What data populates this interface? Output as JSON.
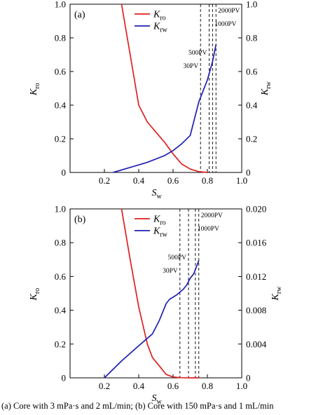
{
  "caption": "(a)  Core  with  3  mPa·s  and 2 mL/min; (b) Core with 150 mPa·s and 1 mL/min",
  "colors": {
    "kro": "#e0201f",
    "krw": "#1f1fb4",
    "axis": "#000000",
    "marker": "#000000"
  },
  "chart_data": [
    {
      "type": "line",
      "panel_label": "(a)",
      "xlabel": "S",
      "xlabel_sub": "w",
      "ylabel_left": "K",
      "ylabel_left_sub": "ro",
      "ylabel_right": "K",
      "ylabel_right_sub": "rw",
      "xlim": [
        0,
        1.0
      ],
      "ylim_left": [
        0,
        1.0
      ],
      "ylim_right": [
        0,
        1.0
      ],
      "x_ticks": [
        "0.2",
        "0.4",
        "0.6",
        "0.8",
        "1.0"
      ],
      "x_tick_values": [
        0.2,
        0.4,
        0.6,
        0.8,
        1.0
      ],
      "y_left_ticks": [
        "0",
        "0.2",
        "0.4",
        "0.6",
        "0.8",
        "1.0"
      ],
      "y_left_tick_values": [
        0,
        0.2,
        0.4,
        0.6,
        0.8,
        1.0
      ],
      "y_right_ticks": [
        "0",
        "0.2",
        "0.4",
        "0.6",
        "0.8",
        "1.0"
      ],
      "y_right_tick_values": [
        0,
        0.2,
        0.4,
        0.6,
        0.8,
        1.0
      ],
      "legend": {
        "position": "top-center",
        "items": [
          {
            "label": "K",
            "sub": "ro",
            "series": "Kro"
          },
          {
            "label": "K",
            "sub": "rw",
            "series": "Krw"
          }
        ]
      },
      "series": [
        {
          "name": "Kro",
          "axis": "left",
          "color": "#e0201f",
          "x": [
            0.3,
            0.35,
            0.4,
            0.45,
            0.5,
            0.55,
            0.6,
            0.65,
            0.7,
            0.75,
            0.8
          ],
          "y": [
            1.0,
            0.7,
            0.4,
            0.3,
            0.24,
            0.18,
            0.11,
            0.05,
            0.02,
            0.005,
            0.0
          ]
        },
        {
          "name": "Krw",
          "axis": "right",
          "color": "#1f1fb4",
          "x": [
            0.25,
            0.35,
            0.45,
            0.55,
            0.6,
            0.65,
            0.7,
            0.72,
            0.75,
            0.8,
            0.83,
            0.85
          ],
          "y": [
            0.0,
            0.03,
            0.06,
            0.1,
            0.13,
            0.17,
            0.22,
            0.3,
            0.42,
            0.55,
            0.66,
            0.76
          ]
        }
      ],
      "injection_markers": [
        {
          "label": "30PV",
          "x": 0.76
        },
        {
          "label": "500PV",
          "x": 0.81
        },
        {
          "label": "1000PV",
          "x": 0.83
        },
        {
          "label": "2000PV",
          "x": 0.85
        }
      ]
    },
    {
      "type": "line",
      "panel_label": "(b)",
      "xlabel": "S",
      "xlabel_sub": "w",
      "ylabel_left": "K",
      "ylabel_left_sub": "ro",
      "ylabel_right": "K",
      "ylabel_right_sub": "rw",
      "xlim": [
        0,
        1.0
      ],
      "ylim_left": [
        0,
        1.0
      ],
      "ylim_right": [
        0,
        0.02
      ],
      "x_ticks": [
        "0.2",
        "0.4",
        "0.6",
        "0.8",
        "1.0"
      ],
      "x_tick_values": [
        0.2,
        0.4,
        0.6,
        0.8,
        1.0
      ],
      "y_left_ticks": [
        "0",
        "0.2",
        "0.4",
        "0.6",
        "0.8",
        "1.0"
      ],
      "y_left_tick_values": [
        0,
        0.2,
        0.4,
        0.6,
        0.8,
        1.0
      ],
      "y_right_ticks": [
        "0",
        "0.004",
        "0.008",
        "0.012",
        "0.016",
        "0.020"
      ],
      "y_right_tick_values": [
        0,
        0.004,
        0.008,
        0.012,
        0.016,
        0.02
      ],
      "legend": {
        "position": "top-center",
        "items": [
          {
            "label": "K",
            "sub": "ro",
            "series": "Kro"
          },
          {
            "label": "K",
            "sub": "rw",
            "series": "Krw"
          }
        ]
      },
      "series": [
        {
          "name": "Kro",
          "axis": "left",
          "color": "#e0201f",
          "x": [
            0.3,
            0.35,
            0.4,
            0.45,
            0.48,
            0.52,
            0.56,
            0.6,
            0.65,
            0.7,
            0.75
          ],
          "y": [
            1.0,
            0.7,
            0.42,
            0.2,
            0.12,
            0.07,
            0.02,
            0.005,
            0.001,
            0.0,
            0.0
          ]
        },
        {
          "name": "Krw",
          "axis": "right",
          "color": "#1f1fb4",
          "x": [
            0.2,
            0.3,
            0.4,
            0.48,
            0.52,
            0.56,
            0.58,
            0.62,
            0.66,
            0.68,
            0.7,
            0.72,
            0.75
          ],
          "y": [
            0.0,
            0.002,
            0.0038,
            0.0052,
            0.0068,
            0.0088,
            0.0093,
            0.0098,
            0.0105,
            0.011,
            0.0118,
            0.0123,
            0.0139
          ]
        }
      ],
      "injection_markers": [
        {
          "label": "30PV",
          "x": 0.64
        },
        {
          "label": "500PV",
          "x": 0.69
        },
        {
          "label": "1000PV",
          "x": 0.73
        },
        {
          "label": "2000PV",
          "x": 0.75
        }
      ]
    }
  ]
}
